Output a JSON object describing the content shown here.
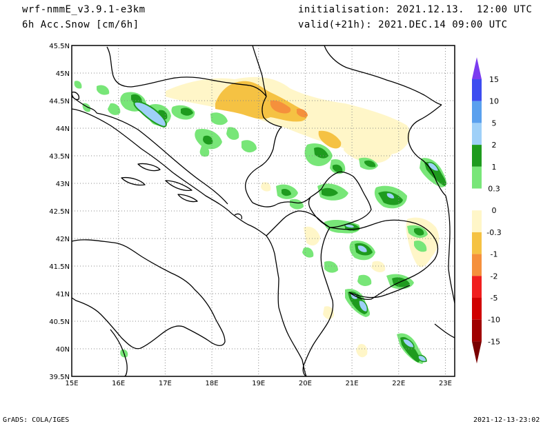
{
  "header": {
    "model": "wrf-nmmE_v3.9.1-e3km",
    "variable": "6h Acc.Snow [cm/6h]",
    "initialisation": "initialisation: 2021.12.13.  12:00 UTC",
    "valid": "valid(+21h): 2021.DEC.14 09:00 UTC"
  },
  "footer": {
    "credit": "GrADS: COLA/IGES",
    "timestamp": "2021-12-13-23:02"
  },
  "map": {
    "lon_range": [
      15,
      23.2
    ],
    "lat_range": [
      39.5,
      45.5
    ],
    "lon_ticks": [
      "15E",
      "16E",
      "17E",
      "18E",
      "19E",
      "20E",
      "21E",
      "22E",
      "23E"
    ],
    "lat_ticks": [
      "39.5N",
      "40N",
      "40.5N",
      "41N",
      "41.5N",
      "42N",
      "42.5N",
      "43N",
      "43.5N",
      "44N",
      "44.5N",
      "45N",
      "45.5N"
    ],
    "grid": "dotted"
  },
  "colorbar": {
    "labels": [
      "15",
      "10",
      "5",
      "2",
      "1",
      "0.3",
      "0",
      "-0.3",
      "-1",
      "-2",
      "-5",
      "-10",
      "-15"
    ],
    "colors": [
      "#7b3cf0",
      "#3c4cf0",
      "#5aa0ee",
      "#9fd0f8",
      "#1e9b1e",
      "#78e678",
      "#ffffff",
      "#fff6c8",
      "#f5c243",
      "#f5903c",
      "#f01e1e",
      "#d00000",
      "#a00000",
      "#7a0000"
    ]
  },
  "colors": {
    "orange": "#f5c243",
    "orange_dark": "#f5903c",
    "light_yellow": "#fff6c8",
    "green_light": "#78e678",
    "green_dark": "#1e9b1e",
    "blue_light": "#9fd0f8",
    "blue": "#5aa0ee"
  }
}
